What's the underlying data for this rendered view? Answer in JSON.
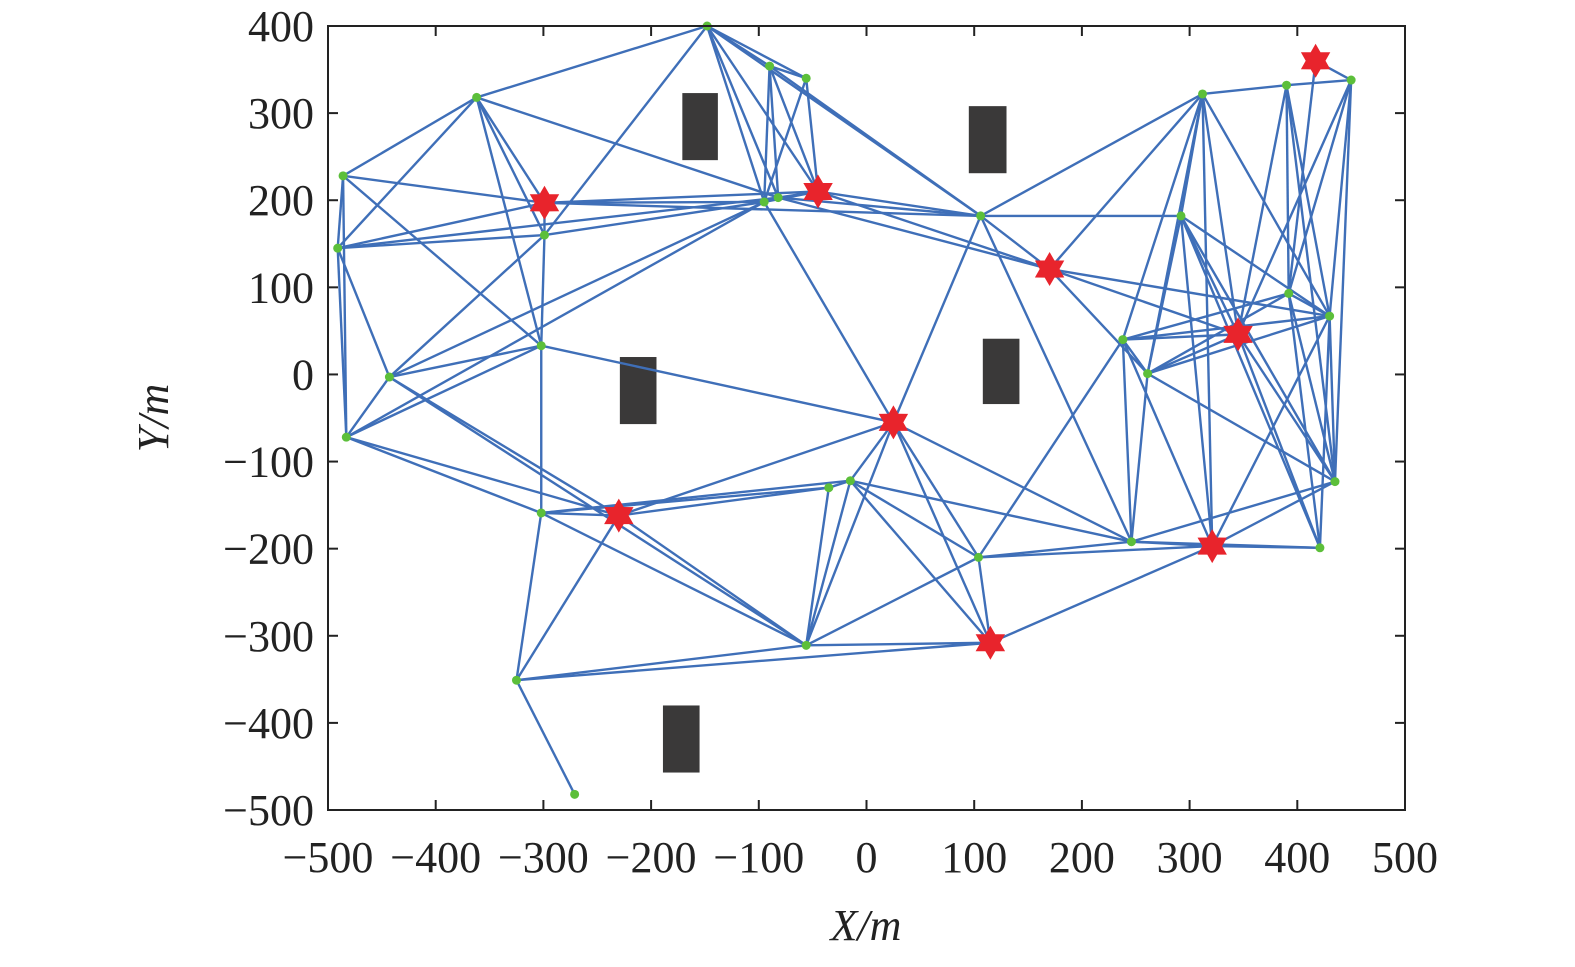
{
  "chart_data": {
    "type": "network",
    "x_label": "X/m",
    "y_label": "Y/m",
    "xlim": [
      -500,
      500
    ],
    "ylim": [
      -500,
      400
    ],
    "xticks": [
      {
        "value": -500,
        "label": "−500"
      },
      {
        "value": -400,
        "label": "−400"
      },
      {
        "value": -300,
        "label": "−300"
      },
      {
        "value": -200,
        "label": "−200"
      },
      {
        "value": -100,
        "label": "−100"
      },
      0,
      100,
      200,
      300,
      400,
      500
    ],
    "yticks": [
      {
        "value": -500,
        "label": "−500"
      },
      {
        "value": -400,
        "label": "−400"
      },
      {
        "value": -300,
        "label": "−300"
      },
      {
        "value": -200,
        "label": "−200"
      },
      {
        "value": -100,
        "label": "−100"
      },
      0,
      100,
      200,
      300,
      400
    ],
    "node_color": "#5cbf3a",
    "anchor_color": "#e8242c",
    "edge_color": "#3f6fb8",
    "obstacle_color": "#3a3939",
    "x": [
      -148,
      -90,
      -56,
      -362,
      -486,
      -491,
      -299,
      -95,
      -82,
      106,
      -302,
      -443,
      -483,
      -302,
      -35,
      -15,
      -56,
      -325,
      -271,
      104,
      246,
      238,
      261,
      292,
      312,
      390,
      450,
      392,
      430,
      435,
      421,
      -299,
      -45,
      170,
      345,
      417,
      25,
      -230,
      321,
      115
    ],
    "y": [
      400,
      354,
      340,
      318,
      228,
      145,
      160,
      198,
      203,
      182,
      33,
      -3,
      -72,
      -159,
      -130,
      -122,
      -311,
      -351,
      -482,
      -210,
      -192,
      40,
      1,
      182,
      322,
      332,
      338,
      93,
      67,
      -123,
      -199,
      197,
      210,
      121,
      46,
      360,
      -55,
      -162,
      -197,
      -308
    ],
    "anchor_start": 31,
    "edges": [
      [
        0,
        3
      ],
      [
        0,
        1
      ],
      [
        0,
        2
      ],
      [
        0,
        7
      ],
      [
        0,
        8
      ],
      [
        0,
        32
      ],
      [
        0,
        6
      ],
      [
        0,
        9
      ],
      [
        1,
        2
      ],
      [
        1,
        7
      ],
      [
        1,
        8
      ],
      [
        1,
        32
      ],
      [
        1,
        9
      ],
      [
        2,
        7
      ],
      [
        2,
        32
      ],
      [
        3,
        4
      ],
      [
        3,
        5
      ],
      [
        3,
        6
      ],
      [
        3,
        10
      ],
      [
        3,
        31
      ],
      [
        3,
        8
      ],
      [
        4,
        5
      ],
      [
        4,
        12
      ],
      [
        4,
        31
      ],
      [
        4,
        10
      ],
      [
        5,
        12
      ],
      [
        5,
        11
      ],
      [
        5,
        31
      ],
      [
        5,
        6
      ],
      [
        5,
        8
      ],
      [
        6,
        31
      ],
      [
        6,
        10
      ],
      [
        6,
        7
      ],
      [
        6,
        11
      ],
      [
        7,
        31
      ],
      [
        7,
        32
      ],
      [
        7,
        11
      ],
      [
        7,
        12
      ],
      [
        7,
        8
      ],
      [
        7,
        36
      ],
      [
        8,
        32
      ],
      [
        8,
        9
      ],
      [
        8,
        33
      ],
      [
        9,
        33
      ],
      [
        9,
        32
      ],
      [
        9,
        23
      ],
      [
        9,
        36
      ],
      [
        9,
        20
      ],
      [
        9,
        24
      ],
      [
        10,
        13
      ],
      [
        10,
        11
      ],
      [
        10,
        12
      ],
      [
        10,
        36
      ],
      [
        11,
        12
      ],
      [
        11,
        16
      ],
      [
        11,
        37
      ],
      [
        12,
        13
      ],
      [
        12,
        37
      ],
      [
        13,
        37
      ],
      [
        13,
        15
      ],
      [
        13,
        14
      ],
      [
        13,
        16
      ],
      [
        13,
        17
      ],
      [
        14,
        37
      ],
      [
        14,
        15
      ],
      [
        14,
        16
      ],
      [
        15,
        36
      ],
      [
        15,
        19
      ],
      [
        15,
        20
      ],
      [
        15,
        39
      ],
      [
        15,
        16
      ],
      [
        16,
        17
      ],
      [
        16,
        37
      ],
      [
        16,
        36
      ],
      [
        16,
        39
      ],
      [
        16,
        19
      ],
      [
        17,
        18
      ],
      [
        17,
        37
      ],
      [
        17,
        39
      ],
      [
        19,
        39
      ],
      [
        19,
        21
      ],
      [
        19,
        36
      ],
      [
        19,
        38
      ],
      [
        19,
        20
      ],
      [
        20,
        22
      ],
      [
        20,
        38
      ],
      [
        20,
        21
      ],
      [
        20,
        36
      ],
      [
        21,
        22
      ],
      [
        21,
        27
      ],
      [
        21,
        28
      ],
      [
        21,
        34
      ],
      [
        21,
        38
      ],
      [
        22,
        23
      ],
      [
        22,
        33
      ],
      [
        22,
        27
      ],
      [
        22,
        28
      ],
      [
        22,
        34
      ],
      [
        22,
        29
      ],
      [
        22,
        24
      ],
      [
        23,
        24
      ],
      [
        23,
        34
      ],
      [
        23,
        38
      ],
      [
        23,
        28
      ],
      [
        23,
        29
      ],
      [
        23,
        30
      ],
      [
        24,
        25
      ],
      [
        24,
        33
      ],
      [
        24,
        28
      ],
      [
        24,
        38
      ],
      [
        24,
        34
      ],
      [
        24,
        21
      ],
      [
        25,
        26
      ],
      [
        25,
        28
      ],
      [
        25,
        34
      ],
      [
        25,
        29
      ],
      [
        25,
        27
      ],
      [
        26,
        35
      ],
      [
        26,
        28
      ],
      [
        26,
        34
      ],
      [
        26,
        29
      ],
      [
        26,
        27
      ],
      [
        27,
        35
      ],
      [
        27,
        28
      ],
      [
        27,
        29
      ],
      [
        27,
        30
      ],
      [
        28,
        29
      ],
      [
        28,
        30
      ],
      [
        28,
        33
      ],
      [
        28,
        38
      ],
      [
        29,
        34
      ],
      [
        29,
        38
      ],
      [
        29,
        20
      ],
      [
        30,
        34
      ],
      [
        30,
        38
      ],
      [
        30,
        20
      ],
      [
        31,
        32
      ],
      [
        31,
        9
      ],
      [
        32,
        33
      ],
      [
        33,
        34
      ],
      [
        36,
        37
      ],
      [
        36,
        39
      ],
      [
        38,
        39
      ]
    ],
    "obstacles": [
      [
        -171,
        246,
        -138,
        323
      ],
      [
        95,
        231,
        130,
        308
      ],
      [
        -229,
        -57,
        -195,
        20
      ],
      [
        108,
        -34,
        142,
        41
      ],
      [
        -189,
        -457,
        -155,
        -380
      ]
    ]
  }
}
